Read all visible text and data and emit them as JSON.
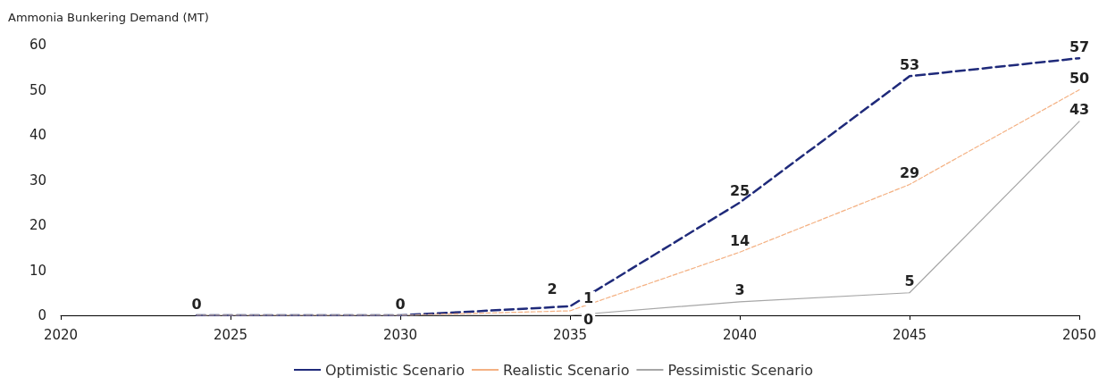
{
  "chart_data": {
    "type": "line",
    "ylabel": "Ammonia Bunkering Demand (MT)",
    "x": [
      2024,
      2030,
      2035,
      2040,
      2045,
      2050
    ],
    "series": [
      {
        "name": "Optimistic Scenario",
        "color": "#1f2a7a",
        "line_style": "dashed",
        "values": [
          0,
          0,
          2,
          25,
          53,
          57
        ],
        "value_labels": [
          "0",
          "0",
          "2",
          "25",
          "53",
          "57"
        ]
      },
      {
        "name": "Realistic Scenario",
        "color": "#f4b183",
        "line_style": "dashed",
        "values": [
          0,
          0,
          1,
          14,
          29,
          50
        ],
        "value_labels": [
          null,
          null,
          "1",
          "14",
          "29",
          "50"
        ]
      },
      {
        "name": "Pessimistic Scenario",
        "color": "#a6a6a6",
        "line_style": "solid",
        "values": [
          0,
          0,
          0,
          3,
          5,
          43
        ],
        "value_labels": [
          null,
          null,
          "0",
          "3",
          "5",
          "43"
        ]
      }
    ],
    "xlim": [
      2020,
      2050
    ],
    "xticks": [
      2020,
      2025,
      2030,
      2035,
      2040,
      2045,
      2050
    ],
    "ylim": [
      0,
      60
    ],
    "yticks": [
      0,
      10,
      20,
      30,
      40,
      50,
      60
    ],
    "grid": false,
    "legend": "bottom",
    "marker": "none"
  }
}
